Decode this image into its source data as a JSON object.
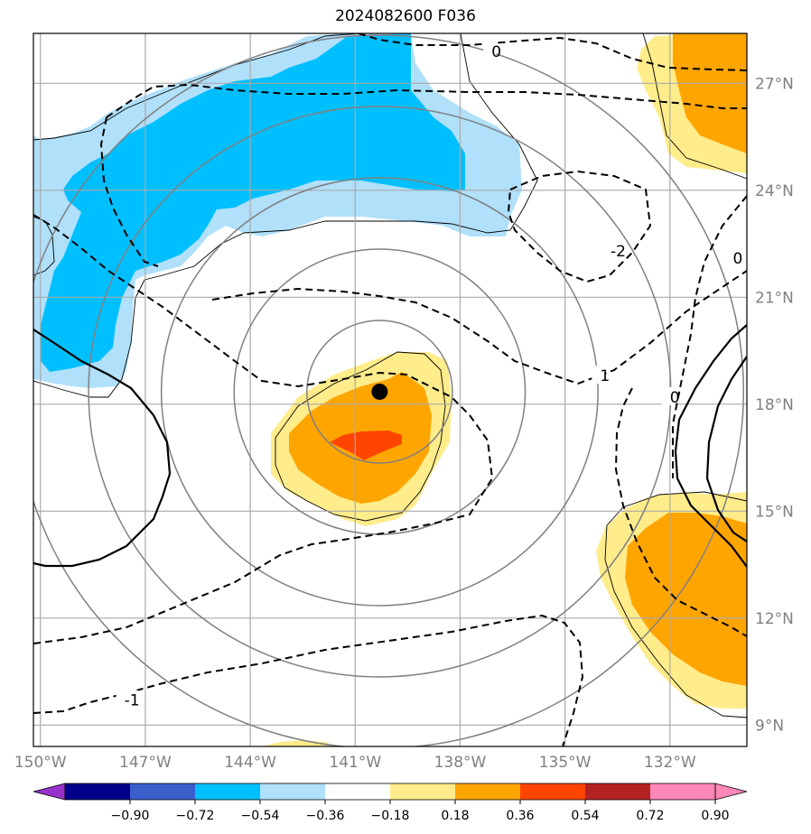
{
  "title": "2024082600 F036",
  "map": {
    "lon_min": -150.2,
    "lon_max": -129.8,
    "lat_min": 8.4,
    "lat_max": 28.4,
    "lon_ticks": [
      {
        "value": -150,
        "label": "150°W"
      },
      {
        "value": -147,
        "label": "147°W"
      },
      {
        "value": -144,
        "label": "144°W"
      },
      {
        "value": -141,
        "label": "141°W"
      },
      {
        "value": -138,
        "label": "138°W"
      },
      {
        "value": -135,
        "label": "135°W"
      },
      {
        "value": -132,
        "label": "132°W"
      }
    ],
    "lat_ticks": [
      {
        "value": 9,
        "label": "9°N"
      },
      {
        "value": 12,
        "label": "12°N"
      },
      {
        "value": 15,
        "label": "15°N"
      },
      {
        "value": 18,
        "label": "18°N"
      },
      {
        "value": 21,
        "label": "21°N"
      },
      {
        "value": 24,
        "label": "24°N"
      },
      {
        "value": 27,
        "label": "27°N"
      }
    ],
    "storm_center": {
      "lon": -140.3,
      "lat": 18.35
    },
    "range_rings_deg": [
      2,
      4,
      6,
      8,
      10
    ],
    "contour_labels": [
      {
        "text": "0",
        "lon": -137.1,
        "lat": 27.9
      },
      {
        "text": "-2",
        "lon": -133.7,
        "lat": 22.3
      },
      {
        "text": "0",
        "lon": -130.2,
        "lat": 22.1
      },
      {
        "text": "1",
        "lon": -134.0,
        "lat": 18.8
      },
      {
        "text": "0",
        "lon": -132.0,
        "lat": 18.2
      },
      {
        "text": "-1",
        "lon": -147.6,
        "lat": 9.7
      }
    ]
  },
  "colorbar": {
    "ticks": [
      "−0.90",
      "−0.72",
      "−0.54",
      "−0.36",
      "−0.18",
      "0.18",
      "0.36",
      "0.54",
      "0.72",
      "0.90"
    ],
    "colors": [
      "#9932cc",
      "#00008b",
      "#3a5fcd",
      "#00bfff",
      "#b0e0fa",
      "#ffffff",
      "#ffec8b",
      "#ffa500",
      "#ff4500",
      "#b22222",
      "#ff88b8",
      "#ff88b8"
    ]
  },
  "colors": {
    "light_blue": "#b0e0fa",
    "blue": "#00bfff",
    "light_yellow": "#ffec8b",
    "orange": "#ffa500",
    "red_orange": "#ff4500",
    "grid": "#aaaaaa",
    "ring": "#808080",
    "tick_label": "#808080"
  }
}
